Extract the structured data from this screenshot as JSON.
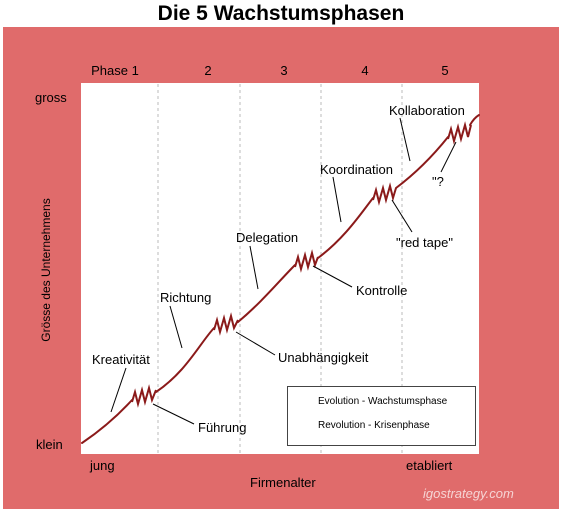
{
  "title": "Die 5 Wachstumsphasen",
  "phases": [
    "Phase 1",
    "2",
    "3",
    "4",
    "5"
  ],
  "y_axis": {
    "label": "Grösse des Unternehmens",
    "top": "gross",
    "bottom": "klein"
  },
  "x_axis": {
    "label": "Firmenalter",
    "left": "jung",
    "right": "etabliert"
  },
  "evolutions": [
    "Kreativität",
    "Richtung",
    "Delegation",
    "Koordination",
    "Kollaboration"
  ],
  "revolutions": [
    "Führung",
    "Unabhängigkeit",
    "Kontrolle",
    "\"red tape\"",
    "\"?"
  ],
  "legend": {
    "evolution": "Evolution - Wachstumsphase",
    "revolution": "Revolution - Krisenphase"
  },
  "watermark": "igostrategy.com",
  "colors": {
    "frame": "#e06b6b",
    "curve": "#8b1a1a",
    "gridline": "#bbbbbb"
  }
}
